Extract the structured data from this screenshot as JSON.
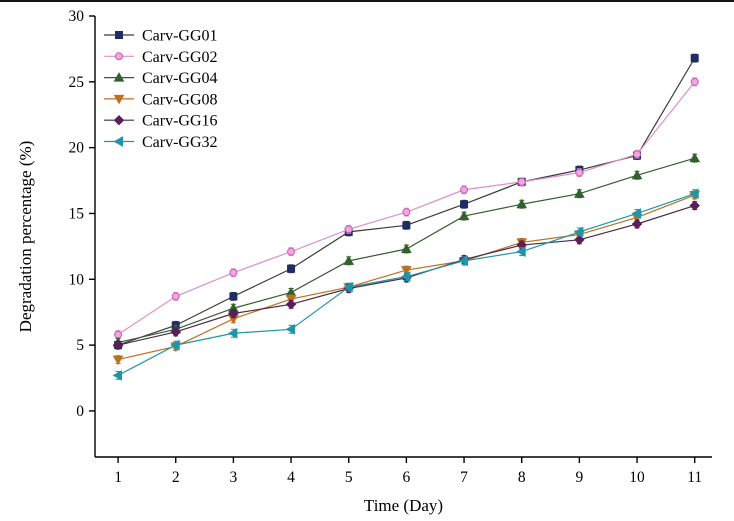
{
  "chart_data": {
    "type": "line",
    "title": "",
    "xlabel": "Time (Day)",
    "ylabel": "Degradation percentage (%)",
    "x": [
      1,
      2,
      3,
      4,
      5,
      6,
      7,
      8,
      9,
      10,
      11
    ],
    "xlim": [
      0.6,
      11.3
    ],
    "ylim": [
      -3.5,
      30
    ],
    "yticks": [
      0,
      5,
      10,
      15,
      20,
      25,
      30
    ],
    "grid": false,
    "legend_position": "top-left",
    "error_bar": 0.3,
    "series": [
      {
        "name": "Carv-GG01",
        "marker": "square",
        "color": "#1f2d63",
        "line_color": "#3a3a3a",
        "values": [
          5.0,
          6.5,
          8.7,
          10.8,
          13.6,
          14.1,
          15.7,
          17.4,
          18.3,
          19.4,
          26.8
        ]
      },
      {
        "name": "Carv-GG02",
        "marker": "circle",
        "color": "#f2a6e0",
        "marker_stroke": "#c05fb0",
        "line_color": "#dd8fcf",
        "values": [
          5.8,
          8.7,
          10.5,
          12.1,
          13.8,
          15.1,
          16.8,
          17.4,
          18.1,
          19.5,
          25.0
        ]
      },
      {
        "name": "Carv-GG04",
        "marker": "triangle-up",
        "color": "#33602f",
        "line_color": "#33602f",
        "values": [
          5.2,
          6.2,
          7.8,
          9.0,
          11.4,
          12.3,
          14.8,
          15.7,
          16.5,
          17.9,
          19.2
        ]
      },
      {
        "name": "Carv-GG08",
        "marker": "triangle-down",
        "color": "#bd7120",
        "line_color": "#bd7120",
        "values": [
          3.9,
          4.9,
          7.0,
          8.5,
          9.4,
          10.7,
          11.4,
          12.8,
          13.4,
          14.7,
          16.4
        ]
      },
      {
        "name": "Carv-GG16",
        "marker": "diamond",
        "color": "#5a1e5a",
        "line_color": "#4c2a4c",
        "values": [
          5.0,
          6.0,
          7.4,
          8.1,
          9.3,
          10.1,
          11.5,
          12.6,
          13.0,
          14.2,
          15.6
        ]
      },
      {
        "name": "Carv-GG32",
        "marker": "triangle-left",
        "color": "#1f96a8",
        "line_color": "#1f96a8",
        "values": [
          2.7,
          5.0,
          5.9,
          6.2,
          9.4,
          10.2,
          11.4,
          12.1,
          13.6,
          15.0,
          16.5
        ]
      }
    ]
  }
}
